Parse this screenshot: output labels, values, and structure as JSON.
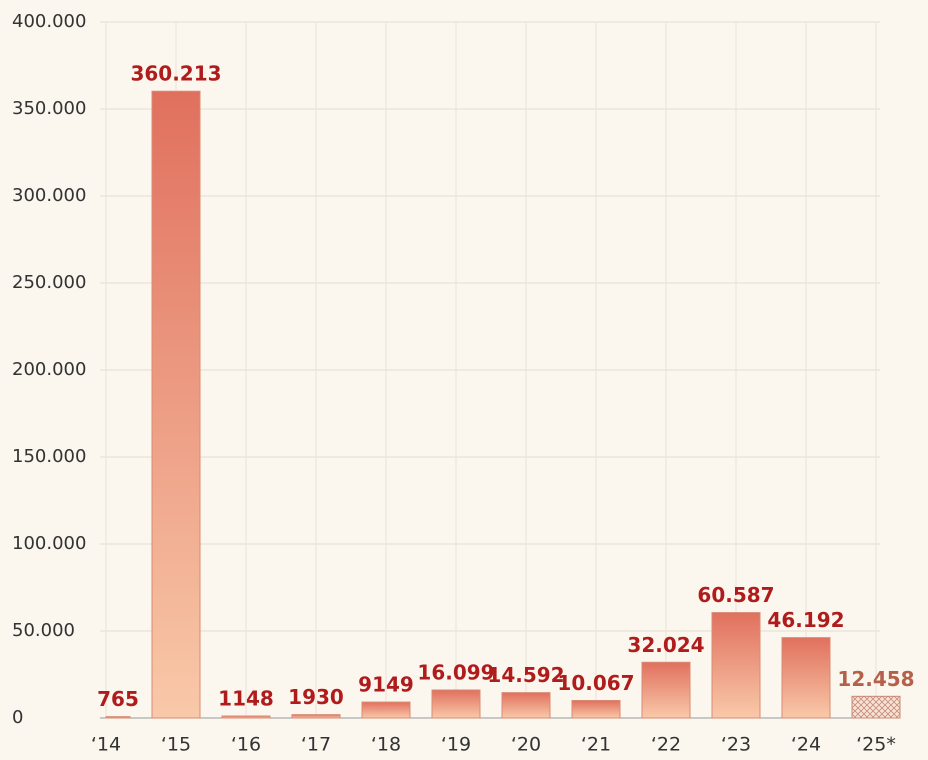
{
  "chart_data": {
    "type": "bar",
    "categories": [
      "‘14",
      "‘15",
      "‘16",
      "‘17",
      "‘18",
      "‘19",
      "‘20",
      "‘21",
      "‘22",
      "‘23",
      "‘24",
      "‘25*"
    ],
    "values": [
      765,
      360213,
      1148,
      1930,
      9149,
      16099,
      14592,
      10067,
      32024,
      60587,
      46192,
      12458
    ],
    "value_labels": [
      "765",
      "360.213",
      "1148",
      "1930",
      "9149",
      "16.099",
      "14.592",
      "10.067",
      "32.024",
      "60.587",
      "46.192",
      "12.458"
    ],
    "hatched": [
      false,
      false,
      false,
      false,
      false,
      false,
      false,
      false,
      false,
      false,
      false,
      true
    ],
    "color": "#e0705e",
    "label_color": "#b01c1c",
    "hatched_label_color": "#b5614a",
    "ylim": [
      0,
      400000
    ],
    "yticks": [
      0,
      {
        "value": 50000,
        "label": "50.000"
      },
      {
        "value": 100000,
        "label": "100.000"
      },
      {
        "value": 150000,
        "label": "150.000"
      },
      {
        "value": 200000,
        "label": "200.000"
      },
      {
        "value": 250000,
        "label": "250.000"
      },
      {
        "value": 300000,
        "label": "300.000"
      },
      {
        "value": 350000,
        "label": "350.000"
      },
      {
        "value": 400000,
        "label": "400.000"
      }
    ],
    "grid": true
  }
}
